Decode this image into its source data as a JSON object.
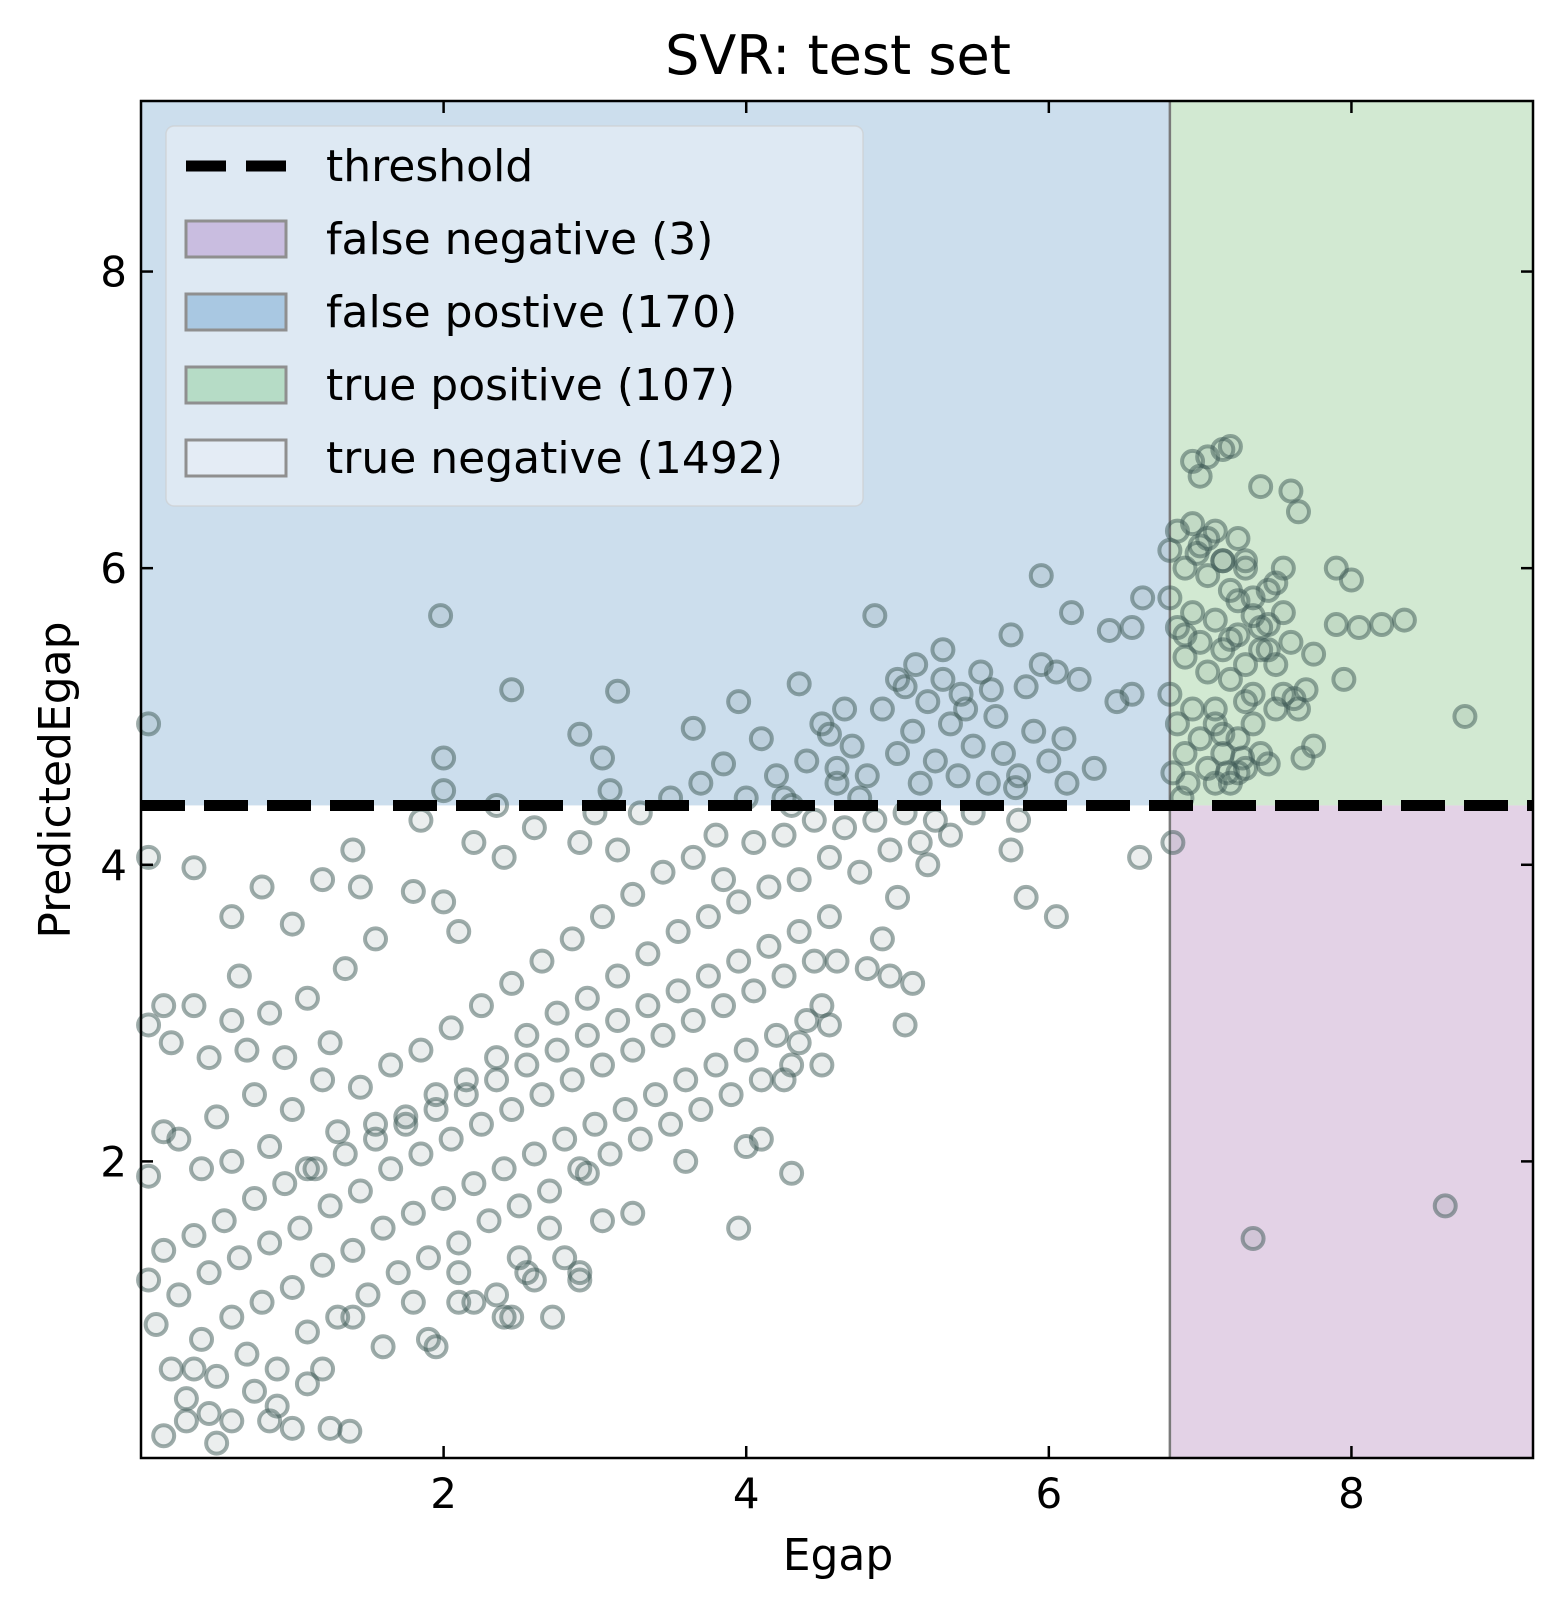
{
  "chart_data": {
    "type": "scatter",
    "title": "SVR: test set",
    "xlabel": "Egap",
    "ylabel": "PredictedEgap",
    "xlim": [
      0,
      9.2
    ],
    "ylim": [
      0,
      9.15
    ],
    "x_ticks": [
      2,
      4,
      6,
      8
    ],
    "y_ticks": [
      2,
      4,
      6,
      8
    ],
    "x_tick_labels": [
      "2",
      "4",
      "6",
      "8"
    ],
    "y_tick_labels": [
      "2",
      "4",
      "6",
      "8"
    ],
    "threshold": 4.4,
    "x_split": 6.8,
    "grid": false,
    "legend_position": "top-left",
    "legend": [
      {
        "label": "threshold",
        "kind": "dashed-line",
        "color": "#000000"
      },
      {
        "label": "false negative (3)",
        "kind": "patch",
        "color": "#c9bde0"
      },
      {
        "label": "false postive (170)",
        "kind": "patch",
        "color": "#a9c8e2"
      },
      {
        "label": "true positive (107)",
        "kind": "patch",
        "color": "#b6dcc6"
      },
      {
        "label": "true negative (1492)",
        "kind": "patch",
        "color": "#e4ecf5"
      }
    ],
    "region_colors": {
      "false_positive": "#ccdeed",
      "true_positive": "#d2e9d2",
      "false_negative": "#e3d2e6",
      "true_negative": "#ffffff"
    },
    "marker_color": "#3d5a56",
    "points": [
      [
        0.05,
        4.95
      ],
      [
        1.98,
        5.68
      ],
      [
        2.45,
        5.18
      ],
      [
        3.15,
        5.17
      ],
      [
        3.95,
        5.1
      ],
      [
        4.35,
        5.22
      ],
      [
        4.85,
        5.68
      ],
      [
        5.95,
        5.95
      ],
      [
        6.15,
        5.7
      ],
      [
        6.4,
        5.58
      ],
      [
        6.55,
        5.6
      ],
      [
        6.62,
        5.8
      ],
      [
        2.0,
        4.72
      ],
      [
        2.0,
        4.5
      ],
      [
        2.2,
        4.15
      ],
      [
        2.35,
        4.4
      ],
      [
        2.4,
        4.05
      ],
      [
        2.6,
        4.25
      ],
      [
        2.9,
        4.15
      ],
      [
        3.0,
        4.35
      ],
      [
        3.1,
        4.5
      ],
      [
        3.15,
        4.1
      ],
      [
        3.3,
        4.35
      ],
      [
        3.5,
        4.45
      ],
      [
        3.7,
        4.55
      ],
      [
        3.8,
        4.2
      ],
      [
        4.0,
        4.45
      ],
      [
        4.1,
        4.85
      ],
      [
        4.2,
        4.6
      ],
      [
        4.3,
        4.4
      ],
      [
        4.4,
        4.7
      ],
      [
        4.5,
        4.95
      ],
      [
        4.6,
        4.55
      ],
      [
        4.7,
        4.8
      ],
      [
        4.8,
        4.6
      ],
      [
        4.9,
        5.05
      ],
      [
        5.0,
        4.75
      ],
      [
        5.05,
        5.2
      ],
      [
        5.1,
        4.9
      ],
      [
        5.15,
        4.55
      ],
      [
        5.2,
        5.1
      ],
      [
        5.25,
        4.7
      ],
      [
        5.3,
        5.25
      ],
      [
        5.35,
        4.95
      ],
      [
        5.4,
        4.6
      ],
      [
        5.45,
        5.05
      ],
      [
        5.5,
        4.8
      ],
      [
        5.55,
        5.3
      ],
      [
        5.6,
        4.55
      ],
      [
        5.65,
        5.0
      ],
      [
        5.7,
        4.75
      ],
      [
        5.75,
        5.55
      ],
      [
        5.8,
        4.6
      ],
      [
        5.85,
        5.2
      ],
      [
        5.9,
        4.9
      ],
      [
        5.95,
        5.35
      ],
      [
        6.0,
        4.7
      ],
      [
        6.05,
        5.3
      ],
      [
        6.1,
        4.85
      ],
      [
        6.2,
        5.25
      ],
      [
        6.3,
        4.65
      ],
      [
        6.45,
        5.1
      ],
      [
        6.55,
        5.15
      ],
      [
        4.6,
        4.65
      ],
      [
        4.75,
        4.45
      ],
      [
        5.0,
        5.25
      ],
      [
        5.3,
        5.45
      ],
      [
        2.9,
        4.88
      ],
      [
        3.05,
        4.72
      ],
      [
        3.65,
        4.92
      ],
      [
        3.85,
        4.68
      ],
      [
        4.25,
        4.45
      ],
      [
        4.55,
        4.88
      ],
      [
        4.65,
        5.05
      ],
      [
        5.12,
        5.35
      ],
      [
        5.42,
        5.15
      ],
      [
        5.62,
        5.18
      ],
      [
        5.78,
        4.52
      ],
      [
        6.12,
        4.55
      ],
      [
        6.6,
        4.05
      ],
      [
        5.75,
        4.1
      ],
      [
        5.85,
        3.78
      ],
      [
        6.05,
        3.65
      ],
      [
        5.8,
        4.3
      ],
      [
        5.5,
        4.35
      ],
      [
        5.2,
        4.0
      ],
      [
        5.0,
        3.78
      ],
      [
        4.9,
        3.5
      ],
      [
        4.8,
        3.3
      ],
      [
        5.1,
        3.2
      ],
      [
        5.05,
        2.92
      ],
      [
        4.95,
        3.25
      ],
      [
        4.6,
        3.35
      ],
      [
        4.55,
        2.92
      ],
      [
        4.5,
        2.65
      ],
      [
        4.35,
        2.8
      ],
      [
        4.25,
        2.55
      ],
      [
        4.3,
        1.92
      ],
      [
        4.1,
        2.15
      ],
      [
        4.0,
        2.1
      ],
      [
        3.95,
        1.55
      ],
      [
        3.6,
        2.0
      ],
      [
        3.25,
        1.65
      ],
      [
        3.05,
        1.6
      ],
      [
        2.95,
        1.92
      ],
      [
        0.05,
        4.05
      ],
      [
        0.35,
        3.98
      ],
      [
        0.6,
        3.65
      ],
      [
        0.8,
        3.85
      ],
      [
        1.0,
        3.6
      ],
      [
        1.2,
        3.9
      ],
      [
        1.4,
        4.1
      ],
      [
        1.45,
        3.85
      ],
      [
        1.55,
        3.5
      ],
      [
        1.8,
        3.82
      ],
      [
        1.85,
        4.3
      ],
      [
        2.0,
        3.75
      ],
      [
        2.1,
        3.55
      ],
      [
        0.05,
        2.92
      ],
      [
        0.15,
        3.05
      ],
      [
        0.2,
        2.8
      ],
      [
        0.35,
        3.05
      ],
      [
        0.45,
        2.7
      ],
      [
        0.6,
        2.95
      ],
      [
        0.65,
        3.25
      ],
      [
        0.7,
        2.75
      ],
      [
        0.85,
        3.0
      ],
      [
        0.95,
        2.7
      ],
      [
        1.1,
        3.1
      ],
      [
        1.25,
        2.8
      ],
      [
        1.35,
        3.3
      ],
      [
        0.05,
        1.9
      ],
      [
        0.15,
        2.2
      ],
      [
        0.25,
        2.15
      ],
      [
        0.4,
        1.95
      ],
      [
        0.5,
        2.3
      ],
      [
        0.6,
        2.0
      ],
      [
        0.75,
        2.45
      ],
      [
        0.85,
        2.1
      ],
      [
        1.0,
        2.35
      ],
      [
        1.1,
        1.95
      ],
      [
        1.2,
        2.55
      ],
      [
        1.3,
        2.2
      ],
      [
        1.45,
        2.5
      ],
      [
        1.55,
        2.25
      ],
      [
        1.65,
        2.65
      ],
      [
        1.75,
        2.3
      ],
      [
        1.85,
        2.75
      ],
      [
        1.95,
        2.45
      ],
      [
        2.05,
        2.9
      ],
      [
        2.15,
        2.55
      ],
      [
        2.25,
        3.05
      ],
      [
        2.35,
        2.7
      ],
      [
        2.45,
        3.2
      ],
      [
        2.55,
        2.85
      ],
      [
        2.65,
        3.35
      ],
      [
        2.75,
        3.0
      ],
      [
        2.85,
        3.5
      ],
      [
        2.95,
        3.1
      ],
      [
        3.05,
        3.65
      ],
      [
        3.15,
        3.25
      ],
      [
        3.25,
        3.8
      ],
      [
        3.35,
        3.4
      ],
      [
        3.45,
        3.95
      ],
      [
        3.55,
        3.55
      ],
      [
        3.65,
        4.05
      ],
      [
        3.75,
        3.65
      ],
      [
        3.85,
        3.9
      ],
      [
        3.95,
        3.75
      ],
      [
        4.05,
        4.15
      ],
      [
        4.15,
        3.85
      ],
      [
        4.25,
        4.2
      ],
      [
        4.35,
        3.9
      ],
      [
        4.45,
        4.3
      ],
      [
        4.55,
        4.05
      ],
      [
        4.65,
        4.25
      ],
      [
        4.75,
        3.95
      ],
      [
        4.85,
        4.3
      ],
      [
        4.95,
        4.1
      ],
      [
        5.05,
        4.35
      ],
      [
        5.15,
        4.15
      ],
      [
        5.25,
        4.3
      ],
      [
        5.35,
        4.2
      ],
      [
        0.05,
        1.2
      ],
      [
        0.1,
        0.9
      ],
      [
        0.15,
        1.4
      ],
      [
        0.2,
        0.6
      ],
      [
        0.25,
        1.1
      ],
      [
        0.3,
        0.4
      ],
      [
        0.35,
        1.5
      ],
      [
        0.4,
        0.8
      ],
      [
        0.45,
        1.25
      ],
      [
        0.5,
        0.55
      ],
      [
        0.55,
        1.6
      ],
      [
        0.6,
        0.95
      ],
      [
        0.65,
        1.35
      ],
      [
        0.7,
        0.7
      ],
      [
        0.75,
        1.75
      ],
      [
        0.8,
        1.05
      ],
      [
        0.85,
        1.45
      ],
      [
        0.9,
        0.6
      ],
      [
        0.95,
        1.85
      ],
      [
        1.0,
        1.15
      ],
      [
        1.05,
        1.55
      ],
      [
        1.1,
        0.85
      ],
      [
        1.15,
        1.95
      ],
      [
        1.2,
        1.3
      ],
      [
        1.25,
        1.7
      ],
      [
        1.3,
        0.95
      ],
      [
        1.35,
        2.05
      ],
      [
        1.4,
        1.4
      ],
      [
        1.45,
        1.8
      ],
      [
        1.5,
        1.1
      ],
      [
        1.55,
        2.15
      ],
      [
        1.6,
        1.55
      ],
      [
        1.65,
        1.95
      ],
      [
        1.7,
        1.25
      ],
      [
        1.75,
        2.25
      ],
      [
        1.8,
        1.65
      ],
      [
        1.85,
        2.05
      ],
      [
        1.9,
        1.35
      ],
      [
        1.95,
        2.35
      ],
      [
        2.0,
        1.75
      ],
      [
        2.05,
        2.15
      ],
      [
        2.1,
        1.45
      ],
      [
        2.15,
        2.45
      ],
      [
        2.2,
        1.85
      ],
      [
        2.25,
        2.25
      ],
      [
        2.3,
        1.6
      ],
      [
        2.35,
        2.55
      ],
      [
        2.4,
        1.95
      ],
      [
        2.45,
        2.35
      ],
      [
        2.5,
        1.7
      ],
      [
        2.55,
        2.65
      ],
      [
        2.6,
        2.05
      ],
      [
        2.65,
        2.45
      ],
      [
        2.7,
        1.8
      ],
      [
        2.75,
        2.75
      ],
      [
        2.8,
        2.15
      ],
      [
        2.85,
        2.55
      ],
      [
        2.9,
        1.95
      ],
      [
        2.95,
        2.85
      ],
      [
        3.0,
        2.25
      ],
      [
        3.05,
        2.65
      ],
      [
        3.1,
        2.05
      ],
      [
        3.15,
        2.95
      ],
      [
        3.2,
        2.35
      ],
      [
        3.25,
        2.75
      ],
      [
        3.3,
        2.15
      ],
      [
        3.35,
        3.05
      ],
      [
        3.4,
        2.45
      ],
      [
        3.45,
        2.85
      ],
      [
        3.5,
        2.25
      ],
      [
        3.55,
        3.15
      ],
      [
        3.6,
        2.55
      ],
      [
        3.65,
        2.95
      ],
      [
        3.7,
        2.35
      ],
      [
        3.75,
        3.25
      ],
      [
        3.8,
        2.65
      ],
      [
        3.85,
        3.05
      ],
      [
        3.9,
        2.45
      ],
      [
        3.95,
        3.35
      ],
      [
        4.0,
        2.75
      ],
      [
        4.05,
        3.15
      ],
      [
        4.1,
        2.55
      ],
      [
        4.15,
        3.45
      ],
      [
        4.2,
        2.85
      ],
      [
        4.25,
        3.25
      ],
      [
        4.3,
        2.65
      ],
      [
        4.35,
        3.55
      ],
      [
        4.4,
        2.95
      ],
      [
        4.45,
        3.35
      ],
      [
        4.5,
        3.05
      ],
      [
        4.55,
        3.65
      ],
      [
        1.4,
        0.95
      ],
      [
        1.6,
        0.75
      ],
      [
        1.8,
        1.05
      ],
      [
        1.9,
        0.8
      ],
      [
        2.1,
        1.25
      ],
      [
        2.2,
        1.05
      ],
      [
        2.4,
        0.95
      ],
      [
        2.5,
        1.35
      ],
      [
        2.6,
        1.2
      ],
      [
        2.7,
        1.55
      ],
      [
        2.8,
        1.35
      ],
      [
        2.9,
        1.25
      ],
      [
        1.25,
        0.2
      ],
      [
        1.38,
        0.18
      ],
      [
        0.6,
        0.25
      ],
      [
        0.9,
        0.35
      ],
      [
        1.0,
        0.2
      ],
      [
        0.5,
        0.1
      ],
      [
        0.15,
        0.15
      ],
      [
        0.3,
        0.25
      ],
      [
        0.75,
        0.45
      ],
      [
        1.1,
        0.5
      ],
      [
        1.2,
        0.6
      ],
      [
        0.35,
        0.6
      ],
      [
        0.45,
        0.3
      ],
      [
        0.85,
        0.25
      ],
      [
        1.95,
        0.75
      ],
      [
        2.1,
        1.05
      ],
      [
        2.45,
        0.95
      ],
      [
        2.72,
        0.95
      ],
      [
        2.9,
        1.2
      ],
      [
        2.55,
        1.25
      ],
      [
        2.35,
        1.1
      ],
      [
        6.82,
        4.15
      ],
      [
        7.35,
        1.48
      ],
      [
        8.62,
        1.7
      ],
      [
        6.8,
        6.12
      ],
      [
        6.85,
        6.25
      ],
      [
        6.9,
        6.0
      ],
      [
        6.95,
        6.3
      ],
      [
        7.0,
        6.15
      ],
      [
        7.05,
        5.95
      ],
      [
        7.1,
        6.25
      ],
      [
        7.15,
        6.05
      ],
      [
        7.2,
        5.85
      ],
      [
        7.25,
        6.2
      ],
      [
        7.3,
        6.0
      ],
      [
        7.35,
        5.8
      ],
      [
        7.4,
        5.6
      ],
      [
        6.8,
        5.8
      ],
      [
        6.85,
        5.6
      ],
      [
        6.9,
        5.4
      ],
      [
        6.95,
        5.7
      ],
      [
        7.0,
        5.5
      ],
      [
        7.05,
        5.3
      ],
      [
        7.1,
        5.65
      ],
      [
        7.15,
        5.45
      ],
      [
        7.2,
        5.25
      ],
      [
        7.25,
        5.55
      ],
      [
        7.3,
        5.35
      ],
      [
        7.35,
        5.15
      ],
      [
        7.4,
        5.45
      ],
      [
        6.8,
        5.15
      ],
      [
        6.85,
        4.95
      ],
      [
        6.9,
        4.75
      ],
      [
        6.95,
        5.05
      ],
      [
        7.0,
        4.85
      ],
      [
        7.05,
        4.65
      ],
      [
        7.1,
        4.95
      ],
      [
        7.15,
        4.75
      ],
      [
        7.2,
        4.55
      ],
      [
        7.25,
        4.85
      ],
      [
        7.3,
        4.65
      ],
      [
        7.35,
        4.95
      ],
      [
        7.4,
        4.75
      ],
      [
        6.82,
        4.62
      ],
      [
        6.88,
        4.45
      ],
      [
        6.92,
        4.55
      ],
      [
        7.18,
        4.62
      ],
      [
        7.28,
        4.72
      ],
      [
        7.45,
        4.68
      ],
      [
        7.68,
        4.72
      ],
      [
        7.75,
        4.8
      ],
      [
        6.95,
        6.72
      ],
      [
        7.0,
        6.62
      ],
      [
        7.05,
        6.75
      ],
      [
        7.15,
        6.8
      ],
      [
        7.2,
        6.82
      ],
      [
        7.4,
        6.55
      ],
      [
        7.6,
        6.52
      ],
      [
        7.65,
        6.38
      ],
      [
        7.3,
        6.05
      ],
      [
        7.5,
        5.9
      ],
      [
        7.55,
        6.0
      ],
      [
        7.45,
        5.85
      ],
      [
        7.55,
        5.7
      ],
      [
        7.6,
        5.5
      ],
      [
        7.45,
        5.62
      ],
      [
        7.5,
        5.35
      ],
      [
        7.55,
        5.15
      ],
      [
        7.62,
        5.12
      ],
      [
        7.7,
        5.18
      ],
      [
        7.5,
        5.05
      ],
      [
        7.65,
        5.05
      ],
      [
        7.9,
        6.0
      ],
      [
        8.0,
        5.92
      ],
      [
        8.05,
        5.6
      ],
      [
        7.75,
        5.42
      ],
      [
        7.95,
        5.25
      ],
      [
        8.2,
        5.62
      ],
      [
        8.35,
        5.65
      ],
      [
        7.9,
        5.62
      ],
      [
        8.75,
        5.0
      ],
      [
        7.15,
        6.05
      ],
      [
        7.05,
        6.2
      ],
      [
        6.98,
        6.1
      ],
      [
        6.9,
        5.55
      ],
      [
        7.2,
        5.52
      ],
      [
        7.25,
        5.78
      ],
      [
        7.35,
        5.68
      ],
      [
        7.45,
        5.45
      ],
      [
        7.1,
        5.05
      ],
      [
        7.15,
        4.88
      ],
      [
        7.3,
        5.1
      ],
      [
        7.25,
        4.62
      ],
      [
        7.1,
        4.55
      ]
    ]
  }
}
